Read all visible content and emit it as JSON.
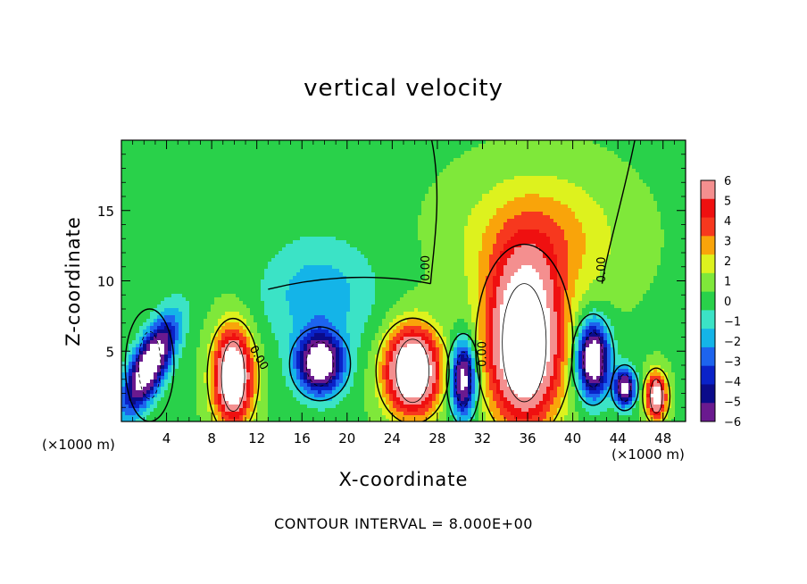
{
  "chart_data": {
    "type": "heatmap",
    "title": "vertical velocity",
    "xlabel": "X-coordinate",
    "ylabel": "Z-coordinate",
    "x_unit": "(×1000 m)",
    "x_unit_right": "(×1000 m)",
    "footer": "CONTOUR INTERVAL = 8.000E+00",
    "xlim": [
      0,
      50
    ],
    "ylim": [
      0,
      20
    ],
    "xticks": [
      4,
      8,
      12,
      16,
      20,
      24,
      28,
      32,
      36,
      40,
      44,
      48
    ],
    "xtick_labels": [
      "4",
      "8",
      "12",
      "16",
      "20",
      "24",
      "28",
      "32",
      "36",
      "40",
      "44",
      "48"
    ],
    "yticks": [
      5,
      10,
      15
    ],
    "ytick_labels": [
      "5",
      "10",
      "15"
    ],
    "colorbar": {
      "min": -6,
      "max": 6,
      "levels": [
        6,
        5,
        4,
        3,
        2,
        1,
        0,
        -1,
        -2,
        -3,
        -4,
        -5,
        -6
      ],
      "labels": [
        "6",
        "5",
        "4",
        "3",
        "2",
        "1",
        "0",
        "−1",
        "−2",
        "−3",
        "−4",
        "−5",
        "−6"
      ]
    },
    "contour_labels": [
      {
        "text": "0.00",
        "x": 27.3,
        "y": 10.9,
        "rotate": -90
      },
      {
        "text": "0.00",
        "x": 42.9,
        "y": 10.8,
        "rotate": -90
      },
      {
        "text": "0.00",
        "x": 11.9,
        "y": 4.4,
        "rotate": 60
      },
      {
        "text": "0.00",
        "x": 32.3,
        "y": 4.8,
        "rotate": -90
      }
    ],
    "features": [
      {
        "sign": "down",
        "x": 2.5,
        "y": 4.0,
        "rx": 1.6,
        "ry": 3.2,
        "amplitude": -9,
        "tilt": 0.5
      },
      {
        "sign": "up",
        "x": 9.9,
        "y": 3.2,
        "rx": 1.7,
        "ry": 3.3,
        "amplitude": 9
      },
      {
        "sign": "down",
        "x": 17.6,
        "y": 4.1,
        "rx": 2.0,
        "ry": 2.1,
        "amplitude": -8.5
      },
      {
        "sign": "up",
        "x": 25.8,
        "y": 3.6,
        "rx": 2.4,
        "ry": 3.0,
        "amplitude": 9.5
      },
      {
        "sign": "down",
        "x": 30.3,
        "y": 3.0,
        "rx": 1.1,
        "ry": 2.6,
        "amplitude": -8
      },
      {
        "sign": "up",
        "x": 35.7,
        "y": 5.6,
        "rx": 3.2,
        "ry": 5.6,
        "amplitude": 10
      },
      {
        "sign": "down",
        "x": 41.8,
        "y": 4.4,
        "rx": 1.4,
        "ry": 2.6,
        "amplitude": -9
      },
      {
        "sign": "down",
        "x": 44.6,
        "y": 2.4,
        "rx": 0.9,
        "ry": 1.3,
        "amplitude": -7.5
      },
      {
        "sign": "up",
        "x": 47.4,
        "y": 1.8,
        "rx": 0.9,
        "ry": 1.6,
        "amplitude": 7.5
      },
      {
        "sign": "up",
        "x": 37.0,
        "y": 13.0,
        "rx": 6.5,
        "ry": 4.5,
        "amplitude": 2.8
      },
      {
        "sign": "down",
        "x": 17.5,
        "y": 9.0,
        "rx": 5.0,
        "ry": 4.0,
        "amplitude": -2.3
      }
    ]
  }
}
